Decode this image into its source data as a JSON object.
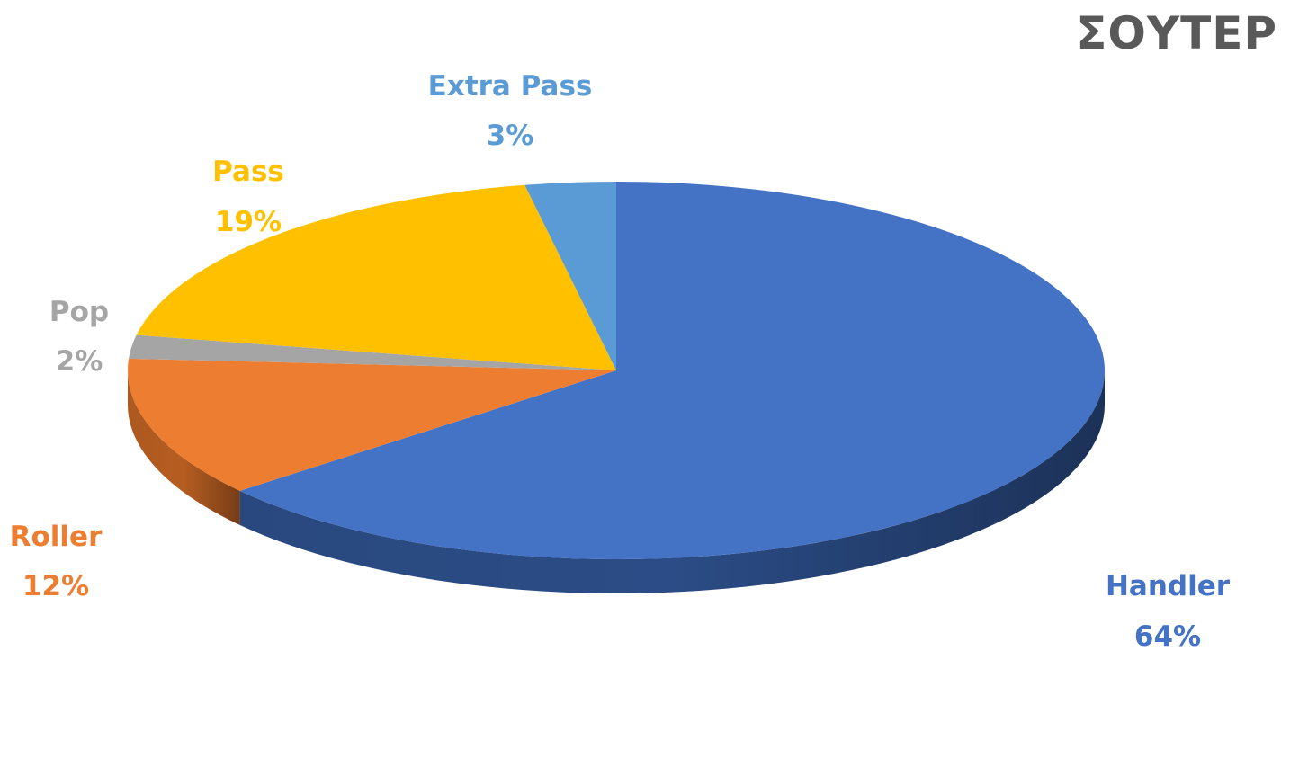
{
  "chart_data": {
    "type": "pie",
    "title": "ΣΟΥΤΕΡ",
    "slices": [
      {
        "label": "Handler",
        "percent_label": "64%",
        "value": 64,
        "color": "#4472C4",
        "side_color": "#2B4C86",
        "text_color": "#4472C4"
      },
      {
        "label": "Roller",
        "percent_label": "12%",
        "value": 12,
        "color": "#ED7D31",
        "side_color": "#B65D21",
        "text_color": "#ED7D31"
      },
      {
        "label": "Pop",
        "percent_label": "2%",
        "value": 2,
        "color": "#A5A5A5",
        "side_color": "#7A7A7A",
        "text_color": "#A5A5A5"
      },
      {
        "label": "Pass",
        "percent_label": "19%",
        "value": 19,
        "color": "#FFC000",
        "side_color": "#BF9000",
        "text_color": "#FFC000"
      },
      {
        "label": "Extra Pass",
        "percent_label": "3%",
        "value": 3,
        "color": "#5B9BD5",
        "side_color": "#3F75A8",
        "text_color": "#5B9BD5"
      }
    ]
  }
}
